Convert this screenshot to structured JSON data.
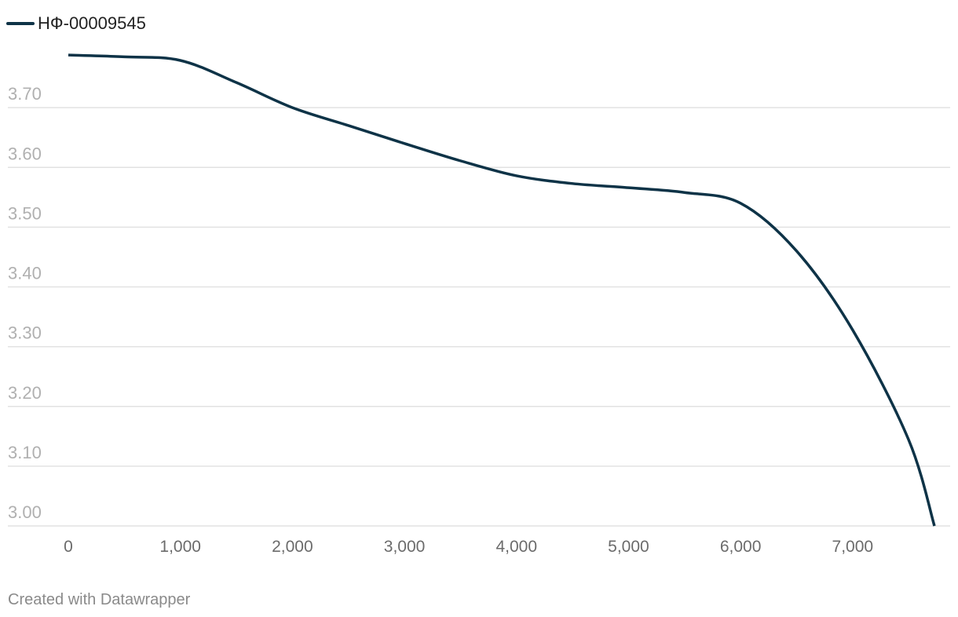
{
  "chart_data": {
    "type": "line",
    "x": [
      0,
      500,
      1000,
      1500,
      2000,
      2500,
      3000,
      3500,
      4000,
      4500,
      5000,
      5500,
      6000,
      6500,
      7000,
      7500,
      7730
    ],
    "series": [
      {
        "name": "НФ-00009545",
        "color": "#0e3347",
        "values": [
          3.788,
          3.785,
          3.779,
          3.742,
          3.7,
          3.67,
          3.64,
          3.611,
          3.586,
          3.573,
          3.566,
          3.558,
          3.54,
          3.46,
          3.328,
          3.144,
          3.0
        ]
      }
    ],
    "xlim": [
      0,
      7730
    ],
    "xticks": [
      0,
      {
        "value": 1000,
        "label": "1,000"
      },
      {
        "value": 2000,
        "label": "2,000"
      },
      {
        "value": 3000,
        "label": "3,000"
      },
      {
        "value": 4000,
        "label": "4,000"
      },
      {
        "value": 5000,
        "label": "5,000"
      },
      {
        "value": 6000,
        "label": "6,000"
      },
      {
        "value": 7000,
        "label": "7,000"
      }
    ],
    "ylim": [
      3.0,
      3.8
    ],
    "yticks": [
      {
        "value": 3.0,
        "label": "3.00"
      },
      {
        "value": 3.1,
        "label": "3.10"
      },
      {
        "value": 3.2,
        "label": "3.20"
      },
      {
        "value": 3.3,
        "label": "3.30"
      },
      {
        "value": 3.4,
        "label": "3.40"
      },
      {
        "value": 3.5,
        "label": "3.50"
      },
      {
        "value": 3.6,
        "label": "3.60"
      },
      {
        "value": 3.7,
        "label": "3.70"
      }
    ],
    "grid": true,
    "footer": "Created with Datawrapper"
  }
}
